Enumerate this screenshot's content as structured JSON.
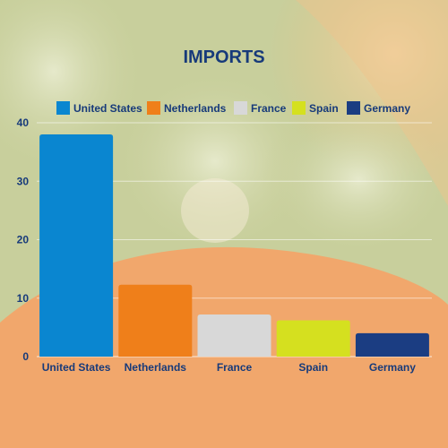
{
  "chart_data": {
    "type": "bar",
    "title": "IMPORTS",
    "categories": [
      "United States",
      "Netherlands",
      "France",
      "Spain",
      "Germany"
    ],
    "values": [
      38,
      12.3,
      7.2,
      6.2,
      4.0
    ],
    "ylim": [
      0,
      40
    ],
    "yticks": [
      "0",
      "10",
      "20",
      "30",
      "40"
    ],
    "xlabel": "",
    "ylabel": "",
    "grid": "horizontal",
    "legend_position": "top",
    "legend": [
      "United States",
      "Netherlands",
      "France",
      "Spain",
      "Germany"
    ],
    "colors": [
      "#0a86d0",
      "#ef7f1a",
      "#d8d8d8",
      "#d5e01f",
      "#1b3d82"
    ]
  },
  "background": {
    "top_color": "#cfd6a6",
    "bottom_color": "#f3a46a"
  }
}
